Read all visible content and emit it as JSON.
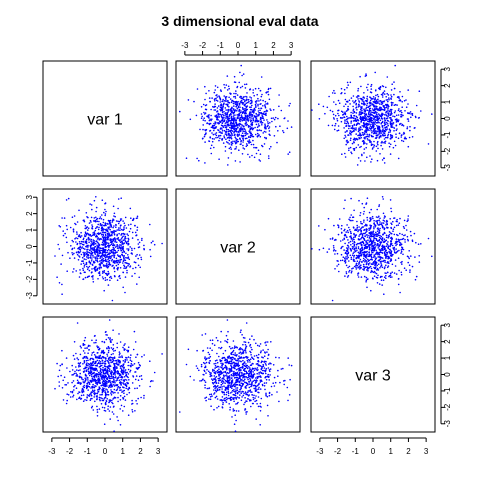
{
  "chart_data": {
    "type": "scatter",
    "title": "3 dimensional eval data",
    "variables": [
      "var 1",
      "var 2",
      "var 3"
    ],
    "axis_range": [
      -3.5,
      3.5
    ],
    "ticks": [
      -3,
      -2,
      -1,
      0,
      1,
      2,
      3
    ],
    "tick_labels": [
      "-3",
      "-2",
      "-1",
      "0",
      "1",
      "2",
      "3"
    ],
    "point_color": "#0000ff",
    "n_points": 1000,
    "distribution": "independent standard normal, mean 0, sd 1",
    "series": [
      {
        "x": "var 2",
        "y": "var 1"
      },
      {
        "x": "var 3",
        "y": "var 1"
      },
      {
        "x": "var 1",
        "y": "var 2"
      },
      {
        "x": "var 3",
        "y": "var 2"
      },
      {
        "x": "var 1",
        "y": "var 3"
      },
      {
        "x": "var 2",
        "y": "var 3"
      }
    ],
    "grid": false,
    "legend": "none"
  }
}
